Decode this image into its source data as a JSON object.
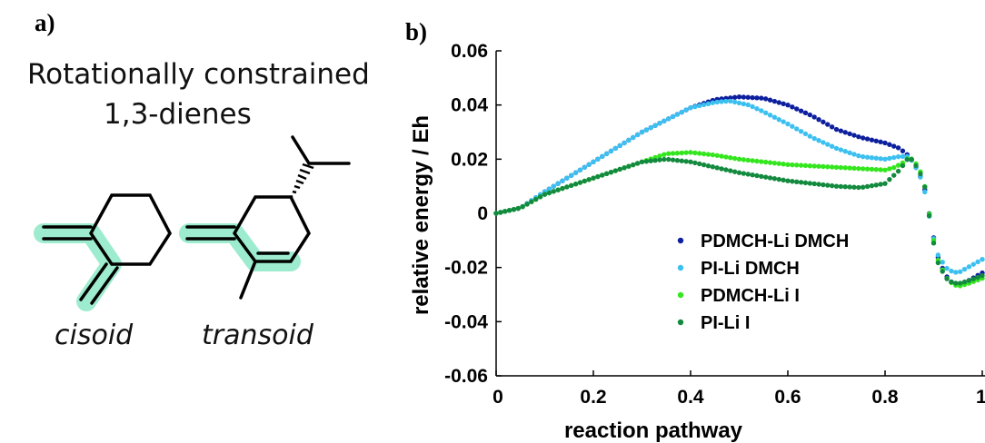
{
  "panel_a": {
    "label": "a)",
    "title_line1": "Rotationally constrained",
    "title_line2": "1,3-dienes",
    "molecules": [
      {
        "label": "cisoid"
      },
      {
        "label": "transoid"
      }
    ],
    "highlight_color": "#7ee6c0"
  },
  "panel_b": {
    "label": "b)"
  },
  "chart_data": {
    "type": "scatter",
    "title": "",
    "xlabel": "reaction pathway",
    "ylabel": "relative energy / Eh",
    "xlim": [
      0,
      1
    ],
    "ylim": [
      -0.06,
      0.06
    ],
    "x_ticks": [
      "0",
      "0.2",
      "0.4",
      "0.6",
      "0.8",
      "1"
    ],
    "y_ticks": [
      "0.06",
      "0.04",
      "0.02",
      "0",
      "-0.02",
      "-0.04",
      "-0.06"
    ],
    "grid": false,
    "legend_position": "lower-center",
    "series": [
      {
        "name": "PDMCH-Li DMCH",
        "color": "#0d1f9e",
        "anchors": [
          [
            0,
            0
          ],
          [
            0.05,
            0.002
          ],
          [
            0.1,
            0.008
          ],
          [
            0.2,
            0.019
          ],
          [
            0.3,
            0.03
          ],
          [
            0.4,
            0.039
          ],
          [
            0.45,
            0.042
          ],
          [
            0.5,
            0.043
          ],
          [
            0.55,
            0.0425
          ],
          [
            0.6,
            0.04
          ],
          [
            0.65,
            0.036
          ],
          [
            0.7,
            0.031
          ],
          [
            0.75,
            0.028
          ],
          [
            0.8,
            0.026
          ],
          [
            0.83,
            0.024
          ],
          [
            0.85,
            0.021
          ],
          [
            0.87,
            0.015
          ],
          [
            0.885,
            0.007
          ],
          [
            0.895,
            -0.005
          ],
          [
            0.91,
            -0.017
          ],
          [
            0.925,
            -0.023
          ],
          [
            0.94,
            -0.026
          ],
          [
            0.96,
            -0.026
          ],
          [
            0.98,
            -0.024
          ],
          [
            1.0,
            -0.022
          ]
        ]
      },
      {
        "name": "PI-Li DMCH",
        "color": "#3cc0f0",
        "anchors": [
          [
            0,
            0
          ],
          [
            0.05,
            0.002
          ],
          [
            0.1,
            0.008
          ],
          [
            0.2,
            0.019
          ],
          [
            0.3,
            0.03
          ],
          [
            0.4,
            0.039
          ],
          [
            0.45,
            0.041
          ],
          [
            0.48,
            0.0415
          ],
          [
            0.52,
            0.04
          ],
          [
            0.55,
            0.0375
          ],
          [
            0.6,
            0.033
          ],
          [
            0.65,
            0.028
          ],
          [
            0.7,
            0.024
          ],
          [
            0.75,
            0.021
          ],
          [
            0.8,
            0.02
          ],
          [
            0.83,
            0.021
          ],
          [
            0.85,
            0.021
          ],
          [
            0.87,
            0.015
          ],
          [
            0.885,
            0.006
          ],
          [
            0.895,
            -0.006
          ],
          [
            0.91,
            -0.016
          ],
          [
            0.93,
            -0.021
          ],
          [
            0.95,
            -0.022
          ],
          [
            0.97,
            -0.02
          ],
          [
            1.0,
            -0.017
          ]
        ]
      },
      {
        "name": "PDMCH-Li I",
        "color": "#33e61d",
        "anchors": [
          [
            0,
            0
          ],
          [
            0.05,
            0.002
          ],
          [
            0.1,
            0.007
          ],
          [
            0.2,
            0.013
          ],
          [
            0.3,
            0.019
          ],
          [
            0.35,
            0.022
          ],
          [
            0.4,
            0.0225
          ],
          [
            0.45,
            0.0215
          ],
          [
            0.5,
            0.02
          ],
          [
            0.6,
            0.018
          ],
          [
            0.7,
            0.017
          ],
          [
            0.8,
            0.016
          ],
          [
            0.82,
            0.017
          ],
          [
            0.84,
            0.019
          ],
          [
            0.85,
            0.021
          ],
          [
            0.87,
            0.017
          ],
          [
            0.885,
            0.008
          ],
          [
            0.895,
            -0.006
          ],
          [
            0.91,
            -0.018
          ],
          [
            0.93,
            -0.025
          ],
          [
            0.95,
            -0.027
          ],
          [
            0.97,
            -0.026
          ],
          [
            1.0,
            -0.024
          ]
        ]
      },
      {
        "name": "PI-Li I",
        "color": "#138a3e",
        "anchors": [
          [
            0,
            0
          ],
          [
            0.05,
            0.002
          ],
          [
            0.1,
            0.007
          ],
          [
            0.2,
            0.013
          ],
          [
            0.3,
            0.019
          ],
          [
            0.35,
            0.02
          ],
          [
            0.4,
            0.019
          ],
          [
            0.45,
            0.017
          ],
          [
            0.5,
            0.015
          ],
          [
            0.6,
            0.012
          ],
          [
            0.7,
            0.01
          ],
          [
            0.75,
            0.0095
          ],
          [
            0.8,
            0.011
          ],
          [
            0.83,
            0.016
          ],
          [
            0.85,
            0.021
          ],
          [
            0.87,
            0.016
          ],
          [
            0.885,
            0.008
          ],
          [
            0.895,
            -0.007
          ],
          [
            0.91,
            -0.019
          ],
          [
            0.93,
            -0.025
          ],
          [
            0.95,
            -0.026
          ],
          [
            0.97,
            -0.025
          ],
          [
            1.0,
            -0.023
          ]
        ]
      }
    ]
  }
}
